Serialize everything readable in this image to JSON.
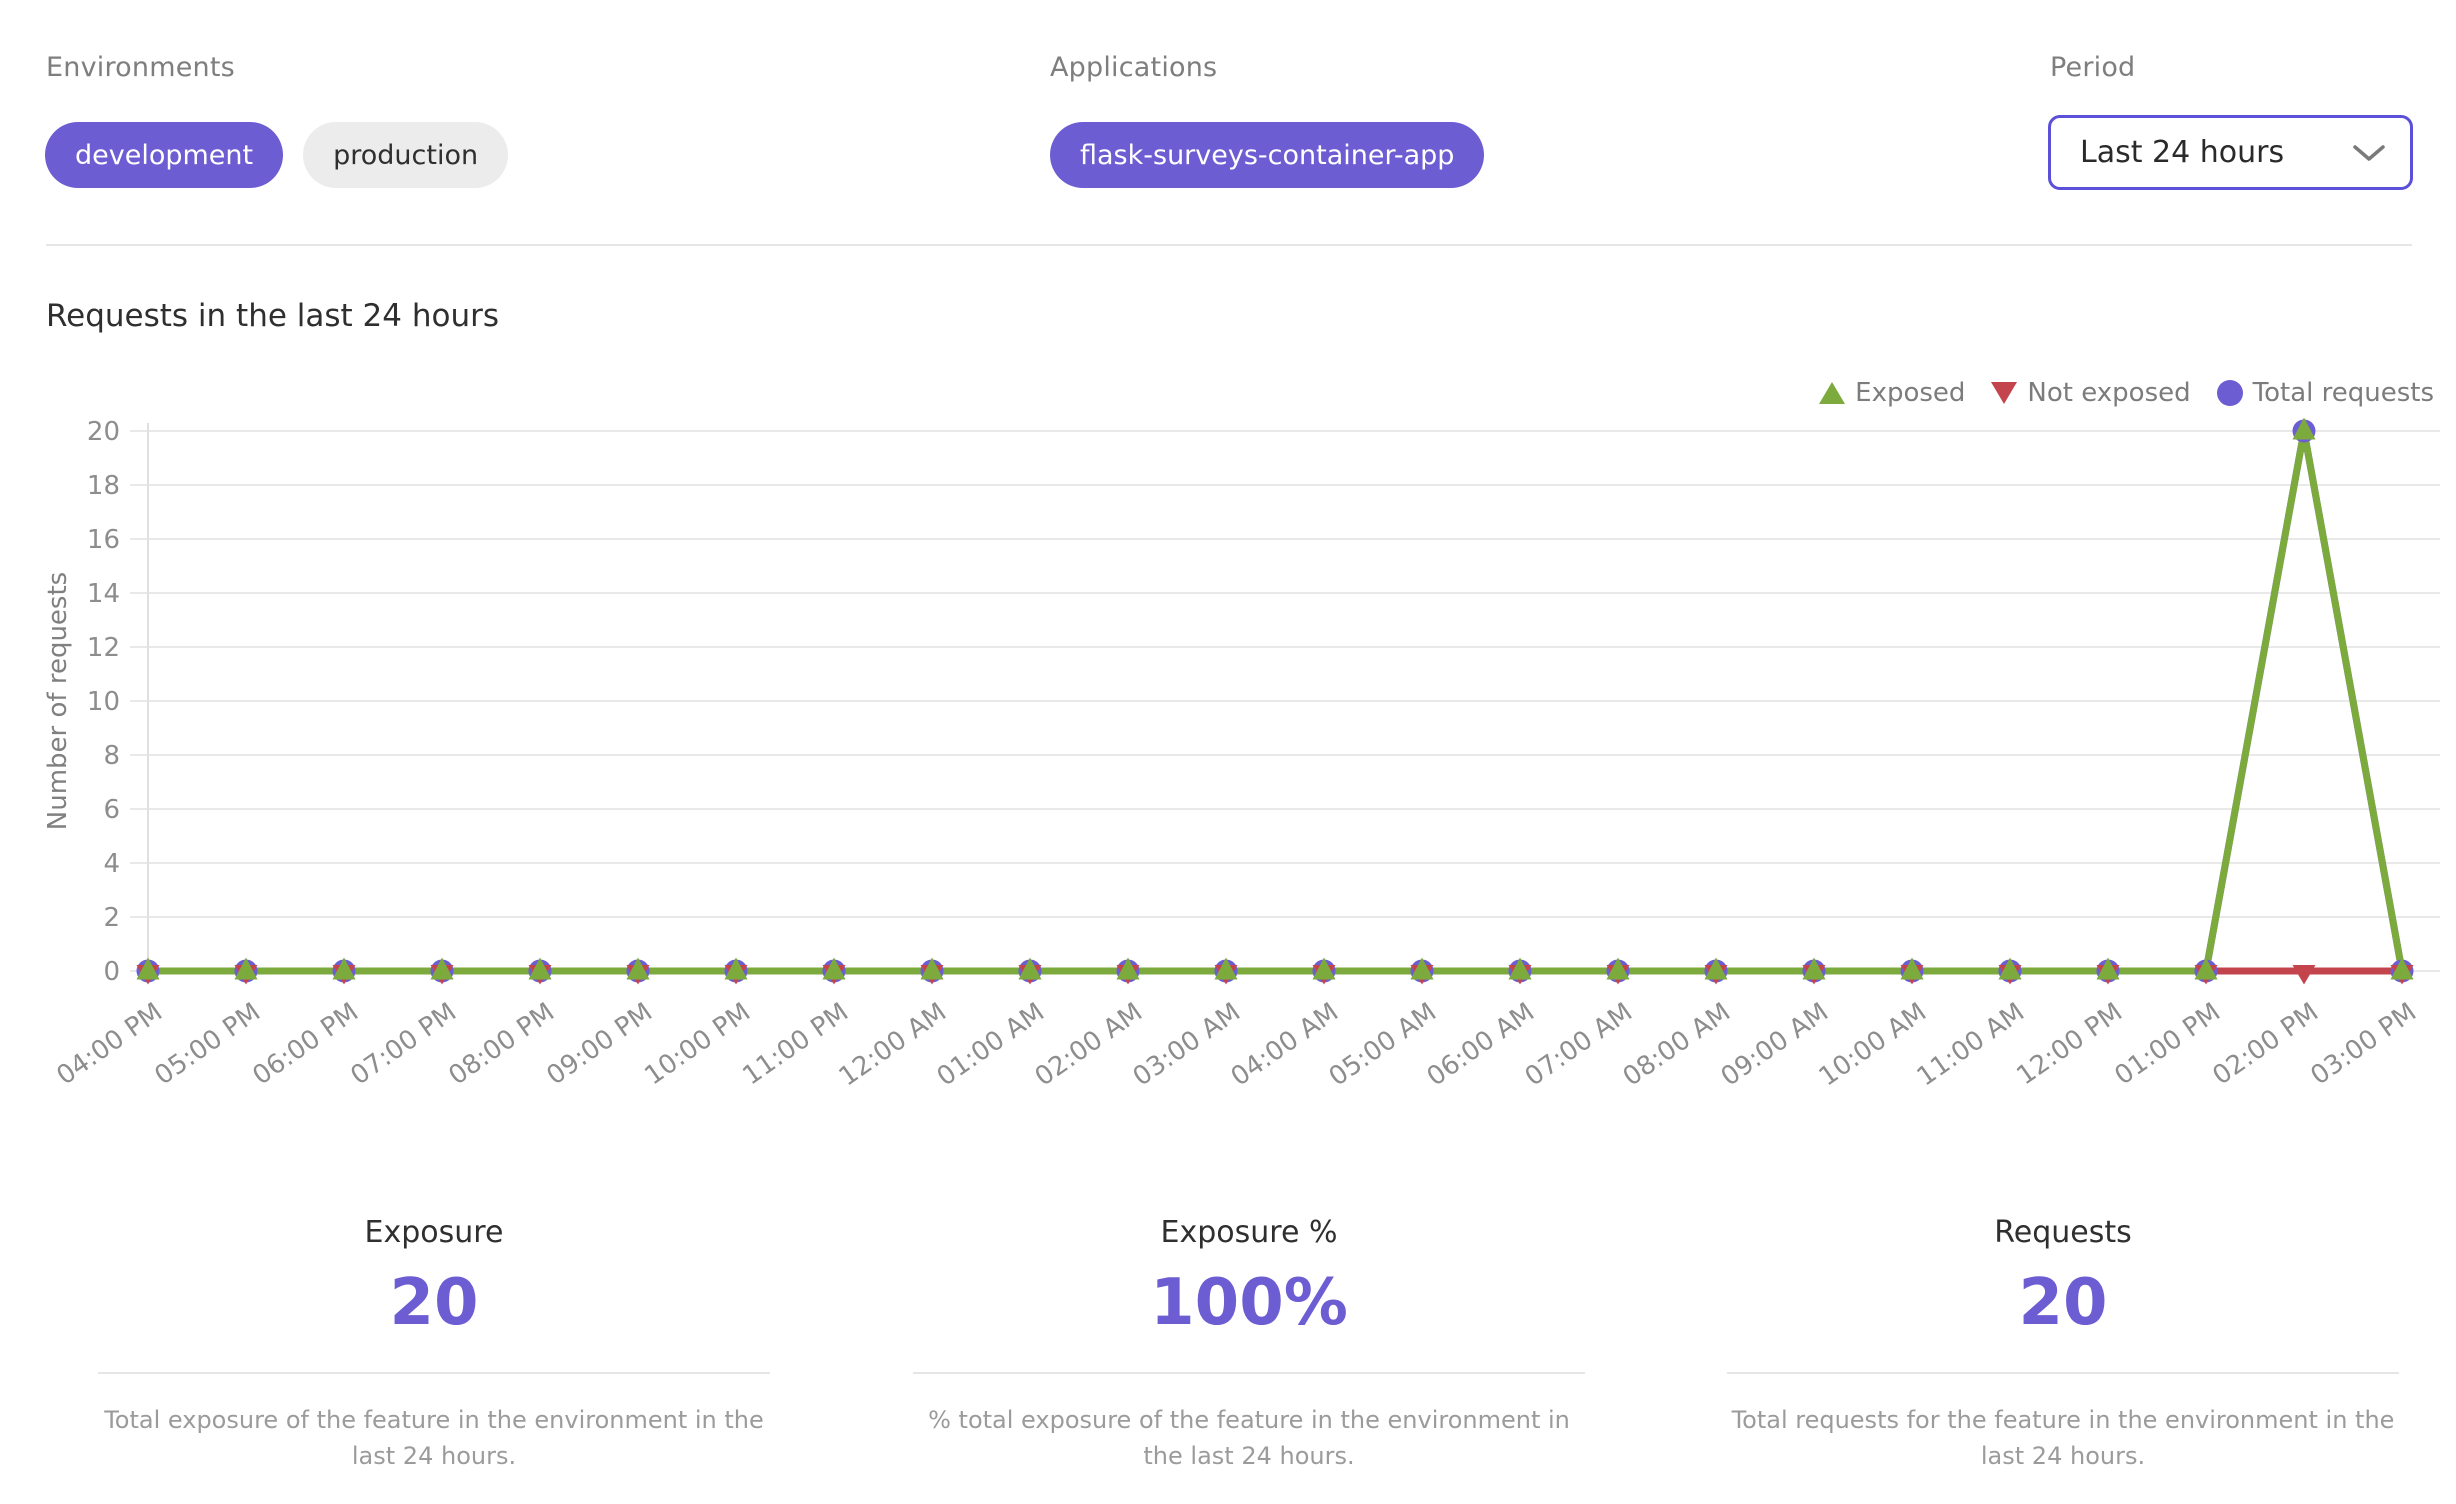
{
  "filters": {
    "environments": {
      "label": "Environments",
      "chips": [
        {
          "label": "development",
          "selected": true
        },
        {
          "label": "production",
          "selected": false
        }
      ]
    },
    "applications": {
      "label": "Applications",
      "chips": [
        {
          "label": "flask-surveys-container-app",
          "selected": true
        }
      ]
    },
    "period": {
      "label": "Period",
      "value": "Last 24 hours"
    }
  },
  "chart_data": {
    "type": "line",
    "title": "Requests in the last 24 hours",
    "xlabel": "",
    "ylabel": "Number of requests",
    "ylim": [
      0,
      20
    ],
    "ytick_step": 2,
    "grid": true,
    "legend_position": "top-right",
    "categories": [
      "04:00 PM",
      "05:00 PM",
      "06:00 PM",
      "07:00 PM",
      "08:00 PM",
      "09:00 PM",
      "10:00 PM",
      "11:00 PM",
      "12:00 AM",
      "01:00 AM",
      "02:00 AM",
      "03:00 AM",
      "04:00 AM",
      "05:00 AM",
      "06:00 AM",
      "07:00 AM",
      "08:00 AM",
      "09:00 AM",
      "10:00 AM",
      "11:00 AM",
      "12:00 PM",
      "01:00 PM",
      "02:00 PM",
      "03:00 PM"
    ],
    "series": [
      {
        "name": "Exposed",
        "marker": "triangle-up",
        "color": "#7caa3d",
        "values": [
          0,
          0,
          0,
          0,
          0,
          0,
          0,
          0,
          0,
          0,
          0,
          0,
          0,
          0,
          0,
          0,
          0,
          0,
          0,
          0,
          0,
          0,
          20,
          0
        ]
      },
      {
        "name": "Not exposed",
        "marker": "triangle-down",
        "color": "#c4444e",
        "values": [
          0,
          0,
          0,
          0,
          0,
          0,
          0,
          0,
          0,
          0,
          0,
          0,
          0,
          0,
          0,
          0,
          0,
          0,
          0,
          0,
          0,
          0,
          0,
          0
        ]
      },
      {
        "name": "Total requests",
        "marker": "circle",
        "color": "#6c5dd3",
        "values": [
          0,
          0,
          0,
          0,
          0,
          0,
          0,
          0,
          0,
          0,
          0,
          0,
          0,
          0,
          0,
          0,
          0,
          0,
          0,
          0,
          0,
          0,
          20,
          0
        ]
      }
    ]
  },
  "stats": [
    {
      "title": "Exposure",
      "value": "20",
      "description": "Total exposure of the feature in the environment in the last 24 hours."
    },
    {
      "title": "Exposure %",
      "value": "100%",
      "description": "% total exposure of the feature in the environment in the last 24 hours."
    },
    {
      "title": "Requests",
      "value": "20",
      "description": "Total requests for the feature in the environment in the last 24 hours."
    }
  ],
  "colors": {
    "accent_purple": "#6c5dd3",
    "green": "#7caa3d",
    "red": "#c4444e",
    "select_border": "#5c50d8",
    "chip_gray_bg": "#ececec",
    "grid": "#e9e9e9",
    "axis_text": "#8d8d8d",
    "label_gray": "#7e7e7e",
    "desc_gray": "#9b9b9b",
    "text_dark": "#2f2f2f",
    "divider": "#e6e6e6"
  }
}
